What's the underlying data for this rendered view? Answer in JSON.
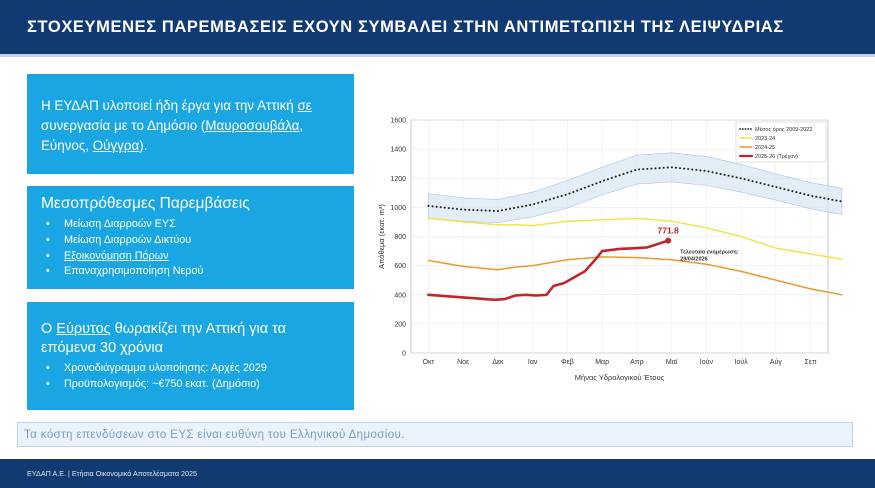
{
  "header": {
    "title": "ΣΤΟΧΕΥΜΕΝΕΣ ΠΑΡΕΜΒΑΣΕΙΣ ΕΧΟΥΝ ΣΥΜΒΑΛΕΙ ΣΤΗΝ ΑΝΤΙΜΕΤΩΠΙΣΗ ΤΗΣ ΛΕΙΨΥΔΡΙΑΣ"
  },
  "box1": {
    "t1": "Η ΕΥΔΑΠ υλοποιεί ήδη έργα για την Αττική ",
    "t2": "σε",
    "t3": " συνεργασία με το Δημόσιο (",
    "t4": "Μαυροσουβάλα",
    "t5": ", Εύηνος, ",
    "t6": "Ούγγρα",
    "t7": ")."
  },
  "box2": {
    "title": "Μεσοπρόθεσμες Παρεμβάσεις",
    "b1": "Μείωση Διαρροών ΕΥΣ",
    "b2": "Μείωση Διαρροών Δικτύου",
    "b3": "Εξοικονόμηση Πόρων",
    "b4a": "Επαναχρησιμοποίηση Νερού"
  },
  "box3": {
    "t1": "Ο ",
    "t2": "Εύρυτος",
    "t3": " θωρακίζει την Αττική για τα επόμενα 30 χρόνια",
    "b1": "Χρονοδιάγραμμα υλοποίησης: Αρχές 2029",
    "b2": "Προϋπολογισμός: ~€750 εκατ. (Δημόσιο)"
  },
  "footnote": "Τα κόστη επενδύσεων στο ΕΥΣ είναι ευθύνη του Ελληνικού Δημοσίου.",
  "footer": "ΕΥΔΑΠ Α.Ε.  |  Ετήσια Οικονομικά Αποτελέσματα 2025",
  "chart_data": {
    "type": "line",
    "xlabel": "Μήνας Υδρολογικού Έτους",
    "ylabel": "Απόθεμα (εκατ. m³)",
    "ylim": [
      0,
      1600
    ],
    "yticks": [
      0,
      200,
      400,
      600,
      800,
      1000,
      1200,
      1400,
      1600
    ],
    "categories": [
      "Οκτ",
      "Νοε",
      "Δεκ",
      "Ιαν",
      "Φεβ",
      "Μαρ",
      "Απρ",
      "Μαϊ",
      "Ιούν",
      "Ιούλ",
      "Αύγ",
      "Σεπ"
    ],
    "grid": true,
    "legend_position": "top-right",
    "series": [
      {
        "name": "Μέσος όρος 2009-2022",
        "style": "dotted",
        "color": "#222222",
        "x": [
          0,
          1,
          2,
          3,
          4,
          5,
          6,
          7,
          8,
          9,
          10,
          11,
          11.9
        ],
        "values": [
          1010,
          985,
          975,
          1020,
          1090,
          1180,
          1260,
          1275,
          1250,
          1200,
          1140,
          1080,
          1040
        ],
        "band_low": [
          925,
          905,
          895,
          935,
          995,
          1085,
          1160,
          1175,
          1150,
          1105,
          1050,
          990,
          950
        ],
        "band_high": [
          1095,
          1065,
          1055,
          1105,
          1185,
          1275,
          1360,
          1375,
          1350,
          1295,
          1230,
          1170,
          1130
        ]
      },
      {
        "name": "2023-24",
        "color": "#f2e34c",
        "x": [
          0,
          1,
          2,
          2.5,
          3,
          4,
          4.6,
          5,
          6,
          7,
          8,
          9,
          10,
          11,
          11.9
        ],
        "values": [
          925,
          900,
          880,
          880,
          875,
          905,
          910,
          915,
          925,
          905,
          860,
          800,
          720,
          680,
          645
        ]
      },
      {
        "name": "2024-25",
        "color": "#e89a2e",
        "x": [
          0,
          1,
          2,
          2.5,
          3,
          4,
          5,
          6,
          7,
          8,
          9,
          10,
          11,
          11.9
        ],
        "values": [
          635,
          595,
          572,
          590,
          600,
          640,
          660,
          655,
          640,
          610,
          560,
          500,
          440,
          400
        ]
      },
      {
        "name": "2025-26 (Τρέχον)",
        "color": "#c0272d",
        "x": [
          0,
          0.8,
          1.4,
          1.9,
          2.2,
          2.5,
          2.8,
          3.1,
          3.4,
          3.6,
          3.9,
          4.2,
          4.5,
          4.8,
          5,
          5.5,
          6,
          6.3,
          6.9
        ],
        "values": [
          400,
          385,
          375,
          365,
          370,
          395,
          400,
          395,
          400,
          460,
          480,
          520,
          560,
          640,
          700,
          715,
          720,
          725,
          771.8
        ]
      }
    ],
    "annotation_value": "771.8",
    "annotation_text": "Τελευταία ενημέρωση:",
    "annotation_date": "29/04/2026"
  }
}
